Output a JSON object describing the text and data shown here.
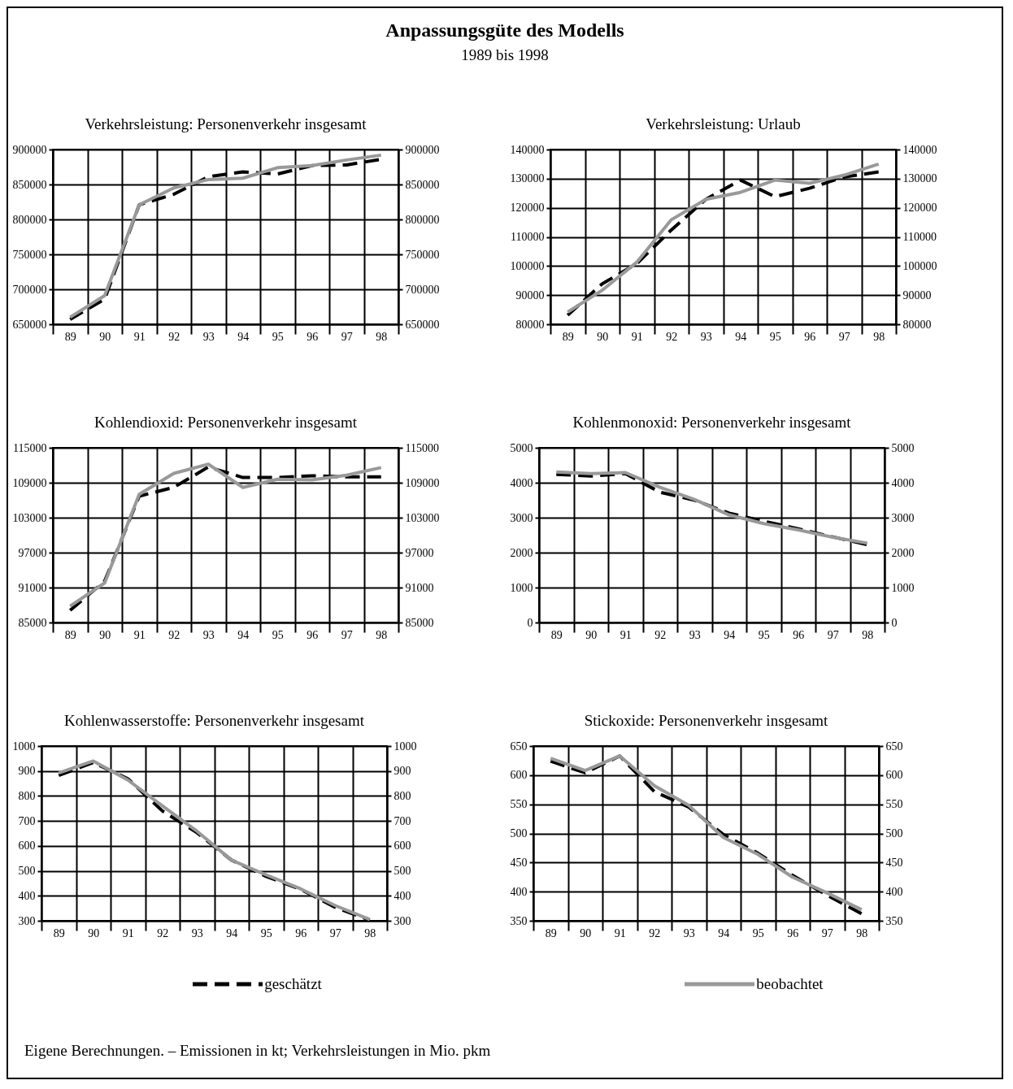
{
  "chart_data": [
    {
      "type": "line",
      "title": "Verkehrsleistung: Personenverkehr insgesamt",
      "annotations": [
        "Anpassungsgüte des Modells",
        "1989 bis 1998",
        "Eigene Berechnungen. – Emissionen in kt; Verkehrsleistungen in Mio. pkm"
      ],
      "categories": [
        "89",
        "90",
        "91",
        "92",
        "93",
        "94",
        "95",
        "96",
        "97",
        "98"
      ],
      "ylim": [
        650000,
        900000
      ],
      "yticks": [
        650000,
        700000,
        750000,
        800000,
        850000,
        900000
      ],
      "y2lim": [
        650000,
        900000
      ],
      "y2ticks": [
        650000,
        700000,
        750000,
        800000,
        850000,
        900000
      ],
      "grid": true,
      "legend": "bottom",
      "series": [
        {
          "name": "geschätzt",
          "color": "#000000",
          "line_style": "dashed",
          "values": [
            657000,
            686000,
            821000,
            836000,
            861000,
            868000,
            865000,
            877000,
            878000,
            886000
          ]
        },
        {
          "name": "beobachtet",
          "color": "#999999",
          "line_style": "solid",
          "values": [
            660000,
            691000,
            821000,
            845000,
            857000,
            859000,
            874000,
            877000,
            885000,
            892000
          ]
        }
      ]
    },
    {
      "type": "line",
      "title": "Verkehrsleistung: Urlaub",
      "categories": [
        "89",
        "90",
        "91",
        "92",
        "93",
        "94",
        "95",
        "96",
        "97",
        "98"
      ],
      "ylim": [
        80000,
        140000
      ],
      "yticks": [
        80000,
        90000,
        100000,
        110000,
        120000,
        130000,
        140000
      ],
      "y2lim": [
        80000,
        140000
      ],
      "y2ticks": [
        80000,
        90000,
        100000,
        110000,
        120000,
        130000,
        140000
      ],
      "grid": true,
      "series": [
        {
          "color": "#000000",
          "line_style": "dashed",
          "values": [
            83100,
            93900,
            100800,
            112400,
            122900,
            129500,
            123800,
            126700,
            130600,
            132300
          ]
        },
        {
          "color": "#999999",
          "line_style": "solid",
          "values": [
            84200,
            91700,
            101300,
            115900,
            122900,
            125300,
            129500,
            128400,
            131200,
            135000
          ]
        }
      ]
    },
    {
      "type": "line",
      "title": "Kohlendioxid: Personenverkehr insgesamt",
      "categories": [
        "89",
        "90",
        "91",
        "92",
        "93",
        "94",
        "95",
        "96",
        "97",
        "98"
      ],
      "ylim": [
        85000,
        115000
      ],
      "yticks": [
        85000,
        91000,
        97000,
        103000,
        109000,
        115000
      ],
      "y2lim": [
        85000,
        115000
      ],
      "y2ticks": [
        85000,
        91000,
        97000,
        103000,
        109000,
        115000
      ],
      "grid": true,
      "series": [
        {
          "color": "#000000",
          "line_style": "dashed",
          "values": [
            87100,
            92100,
            106700,
            108200,
            111700,
            109900,
            109900,
            110200,
            110000,
            110000
          ]
        },
        {
          "color": "#999999",
          "line_style": "solid",
          "values": [
            87800,
            91800,
            107000,
            110600,
            112200,
            108200,
            109600,
            109500,
            110300,
            111600
          ]
        }
      ]
    },
    {
      "type": "line",
      "title": "Kohlenmonoxid: Personenverkehr insgesamt",
      "categories": [
        "89",
        "90",
        "91",
        "92",
        "93",
        "94",
        "95",
        "96",
        "97",
        "98"
      ],
      "ylim": [
        0,
        5000
      ],
      "yticks": [
        0,
        1000,
        2000,
        3000,
        4000,
        5000
      ],
      "y2lim": [
        0,
        5000
      ],
      "y2ticks": [
        0,
        1000,
        2000,
        3000,
        4000,
        5000
      ],
      "grid": true,
      "series": [
        {
          "color": "#000000",
          "line_style": "dashed",
          "values": [
            4240,
            4190,
            4260,
            3730,
            3500,
            3130,
            2900,
            2680,
            2450,
            2230
          ]
        },
        {
          "color": "#999999",
          "line_style": "solid",
          "values": [
            4310,
            4260,
            4290,
            3870,
            3520,
            3080,
            2830,
            2650,
            2440,
            2270
          ]
        }
      ]
    },
    {
      "type": "line",
      "title": "Kohlenwasserstoffe: Personenverkehr insgesamt",
      "categories": [
        "89",
        "90",
        "91",
        "92",
        "93",
        "94",
        "95",
        "96",
        "97",
        "98"
      ],
      "ylim": [
        300,
        1000
      ],
      "yticks": [
        300,
        400,
        500,
        600,
        700,
        800,
        900,
        1000
      ],
      "y2lim": [
        300,
        1000
      ],
      "y2ticks": [
        300,
        400,
        500,
        600,
        700,
        800,
        900,
        1000
      ],
      "grid": true,
      "series": [
        {
          "color": "#000000",
          "line_style": "dashed",
          "values": [
            882,
            934,
            869,
            740,
            653,
            543,
            478,
            426,
            354,
            303
          ]
        },
        {
          "color": "#999999",
          "line_style": "solid",
          "values": [
            892,
            940,
            864,
            760,
            659,
            543,
            484,
            428,
            361,
            305
          ]
        }
      ]
    },
    {
      "type": "line",
      "title": "Stickoxide: Personenverkehr insgesamt",
      "categories": [
        "89",
        "90",
        "91",
        "92",
        "93",
        "94",
        "95",
        "96",
        "97",
        "98"
      ],
      "ylim": [
        350,
        650
      ],
      "yticks": [
        350,
        400,
        450,
        500,
        550,
        600,
        650
      ],
      "y2lim": [
        350,
        650
      ],
      "y2ticks": [
        350,
        400,
        450,
        500,
        550,
        600,
        650
      ],
      "grid": true,
      "series": [
        {
          "color": "#000000",
          "line_style": "dashed",
          "values": [
            624,
            604,
            633,
            572,
            545,
            498,
            466,
            428,
            394,
            362
          ]
        },
        {
          "color": "#999999",
          "line_style": "solid",
          "values": [
            629,
            608,
            633,
            582,
            548,
            493,
            464,
            425,
            398,
            369
          ]
        }
      ]
    }
  ]
}
